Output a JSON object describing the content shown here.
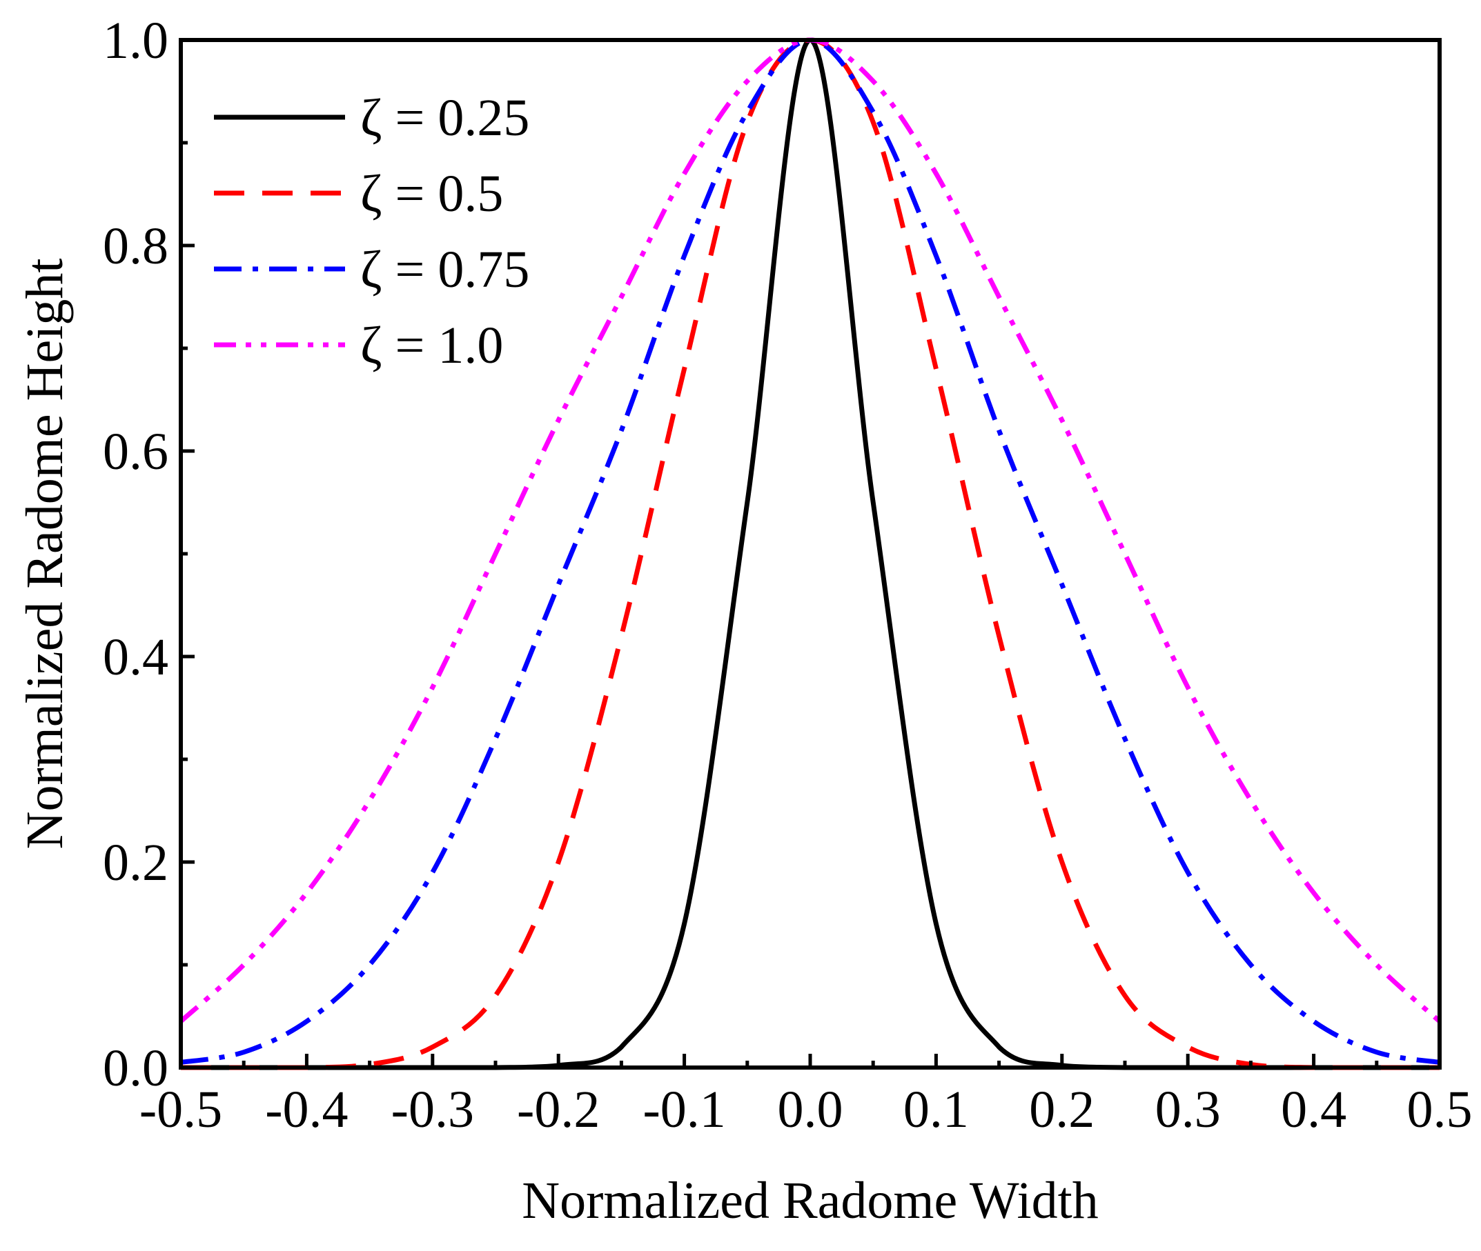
{
  "chart_data": {
    "type": "line",
    "title": "",
    "xlabel": "Normalized Radome Width",
    "ylabel": "Normalized Radome Height",
    "xlim": [
      -0.5,
      0.5
    ],
    "ylim": [
      0.0,
      1.0
    ],
    "x_ticks": [
      -0.5,
      -0.4,
      -0.3,
      -0.2,
      -0.1,
      0.0,
      0.1,
      0.2,
      0.3,
      0.4,
      0.5
    ],
    "x_tick_labels": [
      "-0.5",
      "-0.4",
      "-0.3",
      "-0.2",
      "-0.1",
      "0.0",
      "0.1",
      "0.2",
      "0.3",
      "0.4",
      "0.5"
    ],
    "y_ticks": [
      0.0,
      0.2,
      0.4,
      0.6,
      0.8,
      1.0
    ],
    "y_tick_labels": [
      "0.0",
      "0.2",
      "0.4",
      "0.6",
      "0.8",
      "1.0"
    ],
    "grid": false,
    "legend_position": "top-left",
    "x": [
      -0.5,
      -0.45,
      -0.4,
      -0.35,
      -0.3,
      -0.25,
      -0.2,
      -0.15,
      -0.1,
      -0.05,
      0.0,
      0.05,
      0.1,
      0.15,
      0.2,
      0.25,
      0.3,
      0.35,
      0.4,
      0.45,
      0.5
    ],
    "series": [
      {
        "name": "ζ = 0.25",
        "color": "#000000",
        "dash": "solid",
        "values": [
          0.0,
          0.0,
          0.0,
          0.0,
          0.0,
          0.0,
          0.002,
          0.02,
          0.14,
          0.55,
          1.0,
          0.55,
          0.14,
          0.02,
          0.002,
          0.0,
          0.0,
          0.0,
          0.0,
          0.0,
          0.0
        ]
      },
      {
        "name": "ζ = 0.5",
        "color": "#ff0000",
        "dash": "dash",
        "values": [
          0.0,
          0.0,
          0.0,
          0.003,
          0.02,
          0.07,
          0.2,
          0.42,
          0.68,
          0.92,
          1.0,
          0.92,
          0.68,
          0.42,
          0.2,
          0.07,
          0.02,
          0.003,
          0.0,
          0.0,
          0.0
        ]
      },
      {
        "name": "ζ = 0.75",
        "color": "#0000ff",
        "dash": "dashdot",
        "values": [
          0.005,
          0.015,
          0.045,
          0.1,
          0.19,
          0.32,
          0.47,
          0.62,
          0.79,
          0.93,
          1.0,
          0.93,
          0.79,
          0.62,
          0.47,
          0.32,
          0.19,
          0.1,
          0.045,
          0.015,
          0.005
        ]
      },
      {
        "name": "ζ = 1.0",
        "color": "#ff00ff",
        "dash": "dashdotdot",
        "values": [
          0.045,
          0.1,
          0.17,
          0.26,
          0.37,
          0.5,
          0.63,
          0.75,
          0.87,
          0.96,
          1.0,
          0.96,
          0.87,
          0.75,
          0.63,
          0.5,
          0.37,
          0.26,
          0.17,
          0.1,
          0.045
        ]
      }
    ]
  }
}
